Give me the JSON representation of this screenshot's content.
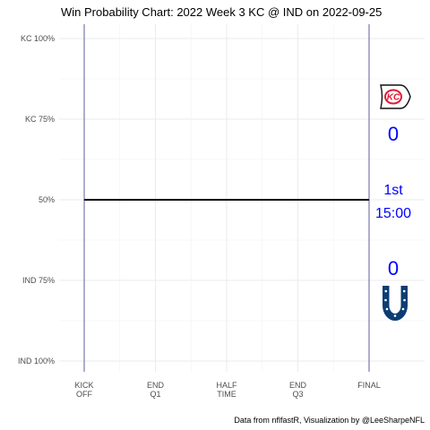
{
  "chart_data": {
    "type": "line",
    "title": "Win Probability Chart: 2022 Week 3 KC @ IND on 2022-09-25",
    "y_tick_labels": [
      "KC 100%",
      "KC 75%",
      "50%",
      "IND 75%",
      "IND 100%"
    ],
    "y_tick_values": [
      1.0,
      0.75,
      0.5,
      0.25,
      0.0
    ],
    "x_tick_labels": [
      [
        "KICK",
        "OFF"
      ],
      [
        "END",
        "Q1"
      ],
      [
        "HALF",
        "TIME"
      ],
      [
        "END",
        "Q3"
      ],
      [
        "FINAL"
      ]
    ],
    "x_tick_values": [
      3600,
      2700,
      1800,
      900,
      0
    ],
    "ylim": [
      0,
      1
    ],
    "xlim": [
      3600,
      0
    ],
    "series": [
      {
        "values": [
          {
            "x": 3600,
            "y": 0.5
          },
          {
            "x": 0,
            "y": 0.5
          }
        ]
      }
    ],
    "vertical_lines_x": [
      3600,
      0
    ],
    "grid": true
  },
  "annotations": {
    "away_team_logo": "kc-chiefs-arrowhead-logo",
    "away_score": "0",
    "quarter": "1st",
    "game_clock": "15:00",
    "home_score": "0",
    "home_team_logo": "ind-colts-horseshoe-logo"
  },
  "caption": "Data from nflfastR, Visualization by @LeeSharpeNFL",
  "colors": {
    "line": "#000000",
    "annotation_text": "#0000ff",
    "vertical_lines": "#3a3a8c",
    "kc_red": "#e31837",
    "colts_blue": "#002c5f"
  }
}
